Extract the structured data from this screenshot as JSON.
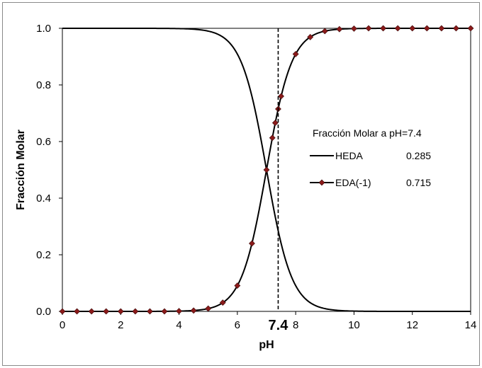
{
  "chart_data": {
    "type": "line",
    "xlabel": "pH",
    "ylabel": "Fracción Molar",
    "xlim": [
      0,
      14
    ],
    "ylim": [
      0,
      1
    ],
    "xticks": [
      "0",
      "2",
      "4",
      "6",
      "8",
      "10",
      "12",
      "14"
    ],
    "yticks": [
      "0.0",
      "0.2",
      "0.4",
      "0.6",
      "0.8",
      "1.0"
    ],
    "pKa": 7.0,
    "reference_line": {
      "x": 7.4,
      "label": "7.4"
    },
    "legend": {
      "title": "Fracción Molar a pH=7.4",
      "placement": "right-middle",
      "entries": [
        {
          "name": "HEDA",
          "value": "0.285"
        },
        {
          "name": "EDA(-1)",
          "value": "0.715"
        }
      ]
    },
    "series": [
      {
        "name": "HEDA",
        "color": "#000000",
        "marker": "none",
        "x": [
          0,
          0.5,
          1,
          1.5,
          2,
          2.5,
          3,
          3.5,
          4,
          4.5,
          5,
          5.5,
          6,
          6.5,
          7,
          7.2,
          7.3,
          7.4,
          7.5,
          8,
          8.5,
          9,
          9.5,
          10,
          10.5,
          11,
          11.5,
          12,
          12.5,
          13,
          13.5,
          14
        ],
        "y": [
          1.0,
          1.0,
          1.0,
          1.0,
          1.0,
          1.0,
          1.0,
          1.0,
          0.999,
          0.997,
          0.99,
          0.969,
          0.909,
          0.76,
          0.5,
          0.387,
          0.334,
          0.285,
          0.24,
          0.091,
          0.031,
          0.01,
          0.003,
          0.001,
          0.0,
          0.0,
          0.0,
          0.0,
          0.0,
          0.0,
          0.0,
          0.0
        ]
      },
      {
        "name": "EDA(-1)",
        "color": "#000000",
        "marker": "diamond",
        "marker_color": "#8b1a1a",
        "x": [
          0,
          0.5,
          1,
          1.5,
          2,
          2.5,
          3,
          3.5,
          4,
          4.5,
          5,
          5.5,
          6,
          6.5,
          7,
          7.2,
          7.3,
          7.4,
          7.5,
          8,
          8.5,
          9,
          9.5,
          10,
          10.5,
          11,
          11.5,
          12,
          12.5,
          13,
          13.5,
          14
        ],
        "y": [
          0.0,
          0.0,
          0.0,
          0.0,
          0.0,
          0.0,
          0.0,
          0.0,
          0.001,
          0.003,
          0.01,
          0.031,
          0.091,
          0.24,
          0.5,
          0.613,
          0.666,
          0.715,
          0.76,
          0.909,
          0.969,
          0.99,
          0.997,
          0.999,
          1.0,
          1.0,
          1.0,
          1.0,
          1.0,
          1.0,
          1.0,
          1.0
        ]
      }
    ]
  }
}
